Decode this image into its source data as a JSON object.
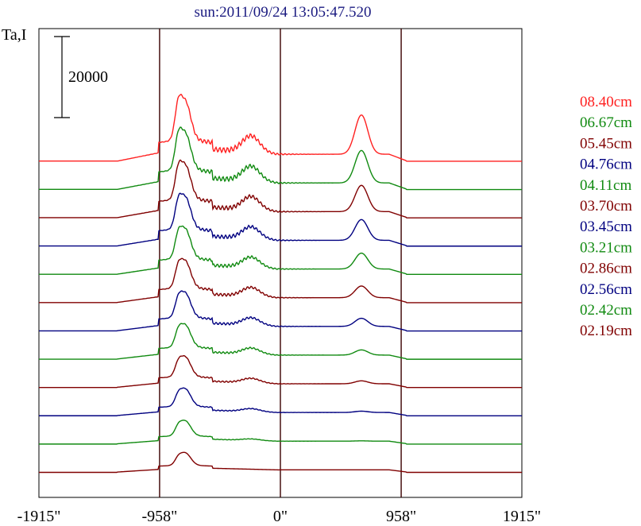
{
  "chart_data": {
    "type": "line",
    "title": "sun:2011/09/24 13:05:47.520",
    "ylabel": "Ta,I",
    "scale_bar_label": "20000",
    "x_ticks": [
      "-1915\"",
      "-958\"",
      "0\"",
      "958\"",
      "1915\""
    ],
    "x_tick_values": [
      -1915,
      -958,
      0,
      958,
      1915
    ],
    "xlim": [
      -1915,
      1915
    ],
    "grid": false,
    "legend_position": "right",
    "colors": {
      "title": "#1a1a80",
      "axes": "#000000",
      "guides": "#3a0000",
      "red": "#ff2020",
      "green": "#108a10",
      "maroon": "#800000",
      "navy": "#000080"
    },
    "series": [
      {
        "name": "08.40cm",
        "color": "#ff2020"
      },
      {
        "name": "06.67cm",
        "color": "#108a10"
      },
      {
        "name": "05.45cm",
        "color": "#800000"
      },
      {
        "name": "04.76cm",
        "color": "#000080"
      },
      {
        "name": "04.11cm",
        "color": "#108a10"
      },
      {
        "name": "03.70cm",
        "color": "#800000"
      },
      {
        "name": "03.45cm",
        "color": "#000080"
      },
      {
        "name": "03.21cm",
        "color": "#108a10"
      },
      {
        "name": "02.86cm",
        "color": "#800000"
      },
      {
        "name": "02.56cm",
        "color": "#000080"
      },
      {
        "name": "02.42cm",
        "color": "#108a10"
      },
      {
        "name": "02.19cm",
        "color": "#800000"
      }
    ]
  }
}
